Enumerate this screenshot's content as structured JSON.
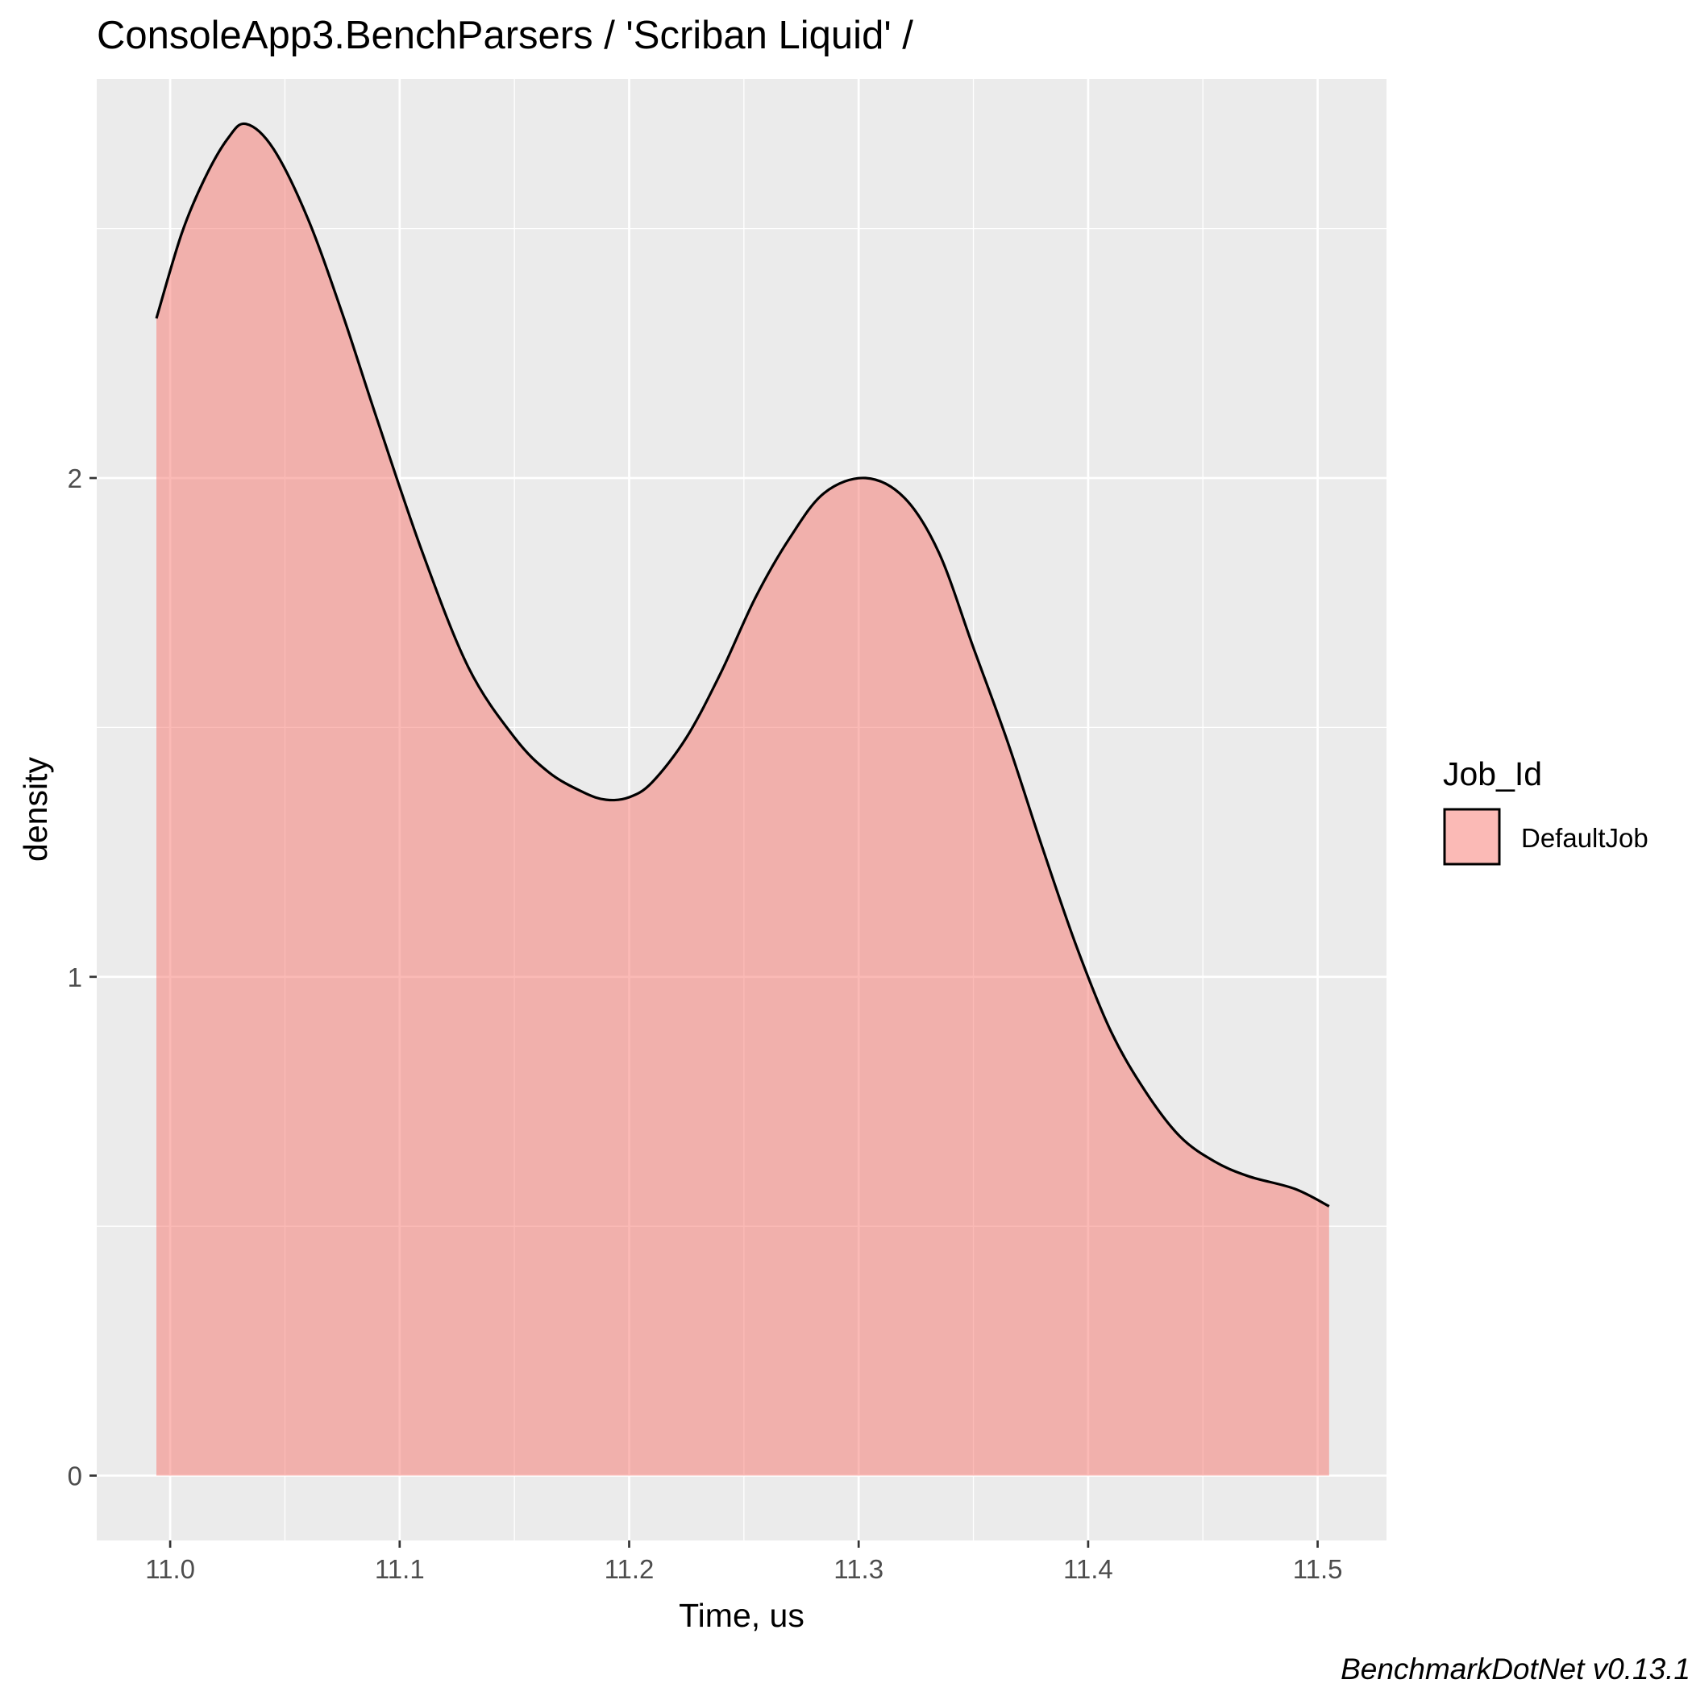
{
  "chart_data": {
    "type": "area",
    "title": "ConsoleApp3.BenchParsers / 'Scriban Liquid' /",
    "xlabel": "Time, us",
    "ylabel": "density",
    "xlim": [
      10.968,
      11.53
    ],
    "ylim": [
      -0.13,
      2.8
    ],
    "x_ticks": [
      11.0,
      11.1,
      11.2,
      11.3,
      11.4,
      11.5
    ],
    "x_tick_labels": [
      "11.0",
      "11.1",
      "11.2",
      "11.3",
      "11.4",
      "11.5"
    ],
    "y_ticks": [
      0,
      1,
      2
    ],
    "y_tick_labels": [
      "0",
      "1",
      "2"
    ],
    "grid": true,
    "legend": {
      "title": "Job_Id",
      "position": "right"
    },
    "caption": "BenchmarkDotNet v0.13.1",
    "series": [
      {
        "name": "DefaultJob",
        "color": "#F8766D",
        "fill_opacity": 0.5,
        "x": [
          10.994,
          11.005,
          11.015,
          11.025,
          11.033,
          11.045,
          11.06,
          11.075,
          11.09,
          11.11,
          11.13,
          11.15,
          11.165,
          11.18,
          11.19,
          11.2,
          11.21,
          11.225,
          11.24,
          11.255,
          11.27,
          11.285,
          11.303,
          11.32,
          11.335,
          11.35,
          11.365,
          11.38,
          11.395,
          11.41,
          11.425,
          11.44,
          11.455,
          11.47,
          11.49,
          11.505
        ],
        "y": [
          2.32,
          2.49,
          2.6,
          2.68,
          2.71,
          2.66,
          2.52,
          2.33,
          2.12,
          1.85,
          1.62,
          1.48,
          1.41,
          1.37,
          1.355,
          1.36,
          1.39,
          1.48,
          1.61,
          1.76,
          1.88,
          1.97,
          2.0,
          1.96,
          1.85,
          1.66,
          1.47,
          1.26,
          1.06,
          0.89,
          0.77,
          0.68,
          0.63,
          0.6,
          0.575,
          0.54
        ]
      }
    ]
  }
}
